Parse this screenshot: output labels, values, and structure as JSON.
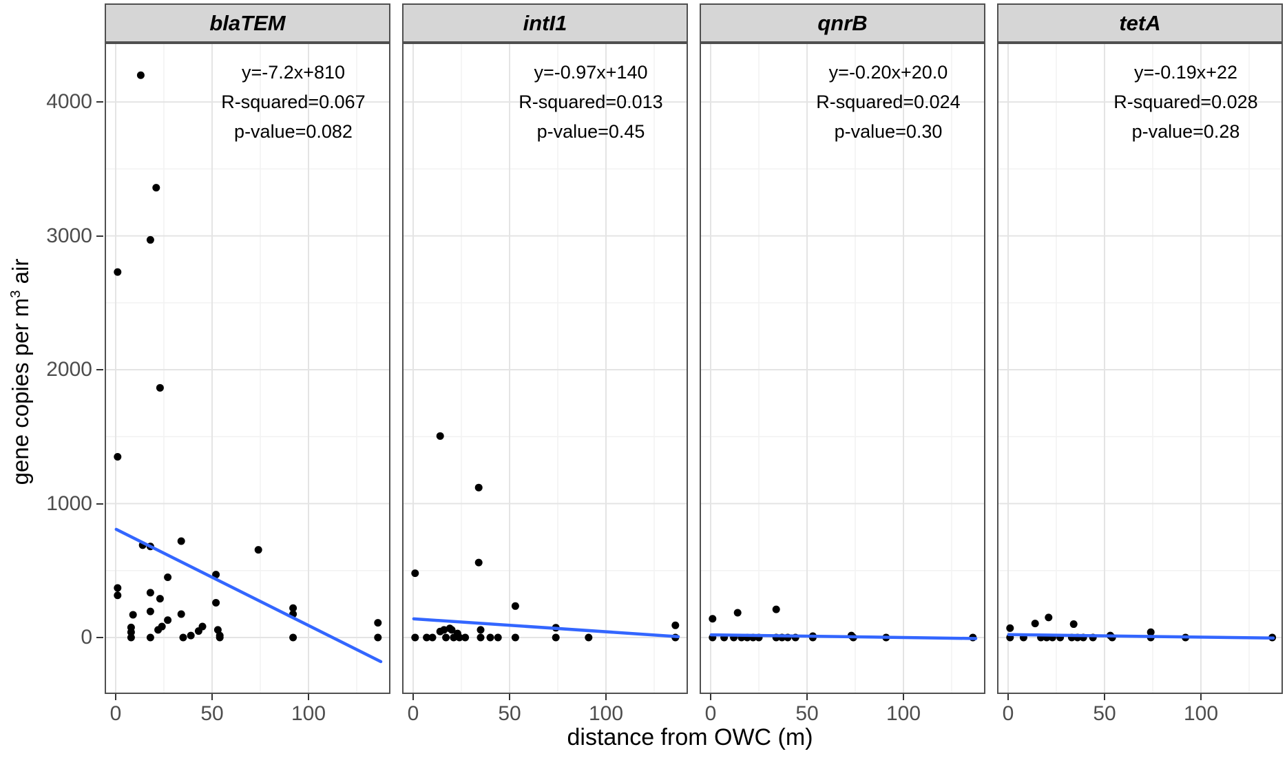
{
  "chart_data": {
    "type": "scatter",
    "title": "",
    "xlabel": "distance from OWC (m)",
    "ylabel": "gene copies per m³ air",
    "ylabel_parts": {
      "prefix": "gene copies per m",
      "superscript": "3",
      "suffix": " air"
    },
    "x_ticks": [
      0,
      50,
      100
    ],
    "y_ticks": [
      0,
      1000,
      2000,
      3000,
      4000
    ],
    "minor_x": [
      25,
      75,
      125
    ],
    "minor_y": [
      500,
      1500,
      2500,
      3500
    ],
    "xlim": [
      -5.7,
      142.5
    ],
    "ylim": [
      -420,
      4443
    ],
    "fit_x_range": [
      0.3,
      137.5
    ],
    "grid": true,
    "legend": "none",
    "style": {
      "point_color": "#000000",
      "line_color": "#3366FF",
      "grid_major": "#E4E4E4",
      "grid_minor": "#F2F2F2",
      "strip_fill": "#D6D6D6",
      "border_color": "#4F4F4F",
      "tick_color": "#333333",
      "tick_label_color": "#4D4D4D"
    },
    "facets": [
      {
        "label": "blaTEM",
        "equation": "y=-7.2x+810",
        "r_squared": "R-squared=0.067",
        "p_value": "p-value=0.082",
        "fit": {
          "slope": -7.2,
          "intercept": 810
        },
        "points": [
          [
            1,
            2730
          ],
          [
            13,
            4200
          ],
          [
            18,
            2970
          ],
          [
            21,
            3360
          ],
          [
            23,
            1865
          ],
          [
            1,
            1350
          ],
          [
            14,
            690
          ],
          [
            18,
            680
          ],
          [
            34,
            720
          ],
          [
            74,
            655
          ],
          [
            1,
            370
          ],
          [
            1,
            315
          ],
          [
            18,
            335
          ],
          [
            23,
            290
          ],
          [
            27,
            450
          ],
          [
            52,
            470
          ],
          [
            52,
            260
          ],
          [
            9,
            170
          ],
          [
            18,
            195
          ],
          [
            34,
            175
          ],
          [
            27,
            130
          ],
          [
            22,
            57
          ],
          [
            24,
            82
          ],
          [
            8,
            75
          ],
          [
            8,
            40
          ],
          [
            8,
            0
          ],
          [
            18,
            0
          ],
          [
            35,
            0
          ],
          [
            39,
            15
          ],
          [
            43,
            48
          ],
          [
            45,
            82
          ],
          [
            53,
            57
          ],
          [
            54,
            15
          ],
          [
            54,
            0
          ],
          [
            92,
            220
          ],
          [
            92,
            175
          ],
          [
            92,
            0
          ],
          [
            136,
            110
          ],
          [
            136,
            0
          ]
        ]
      },
      {
        "label": "intI1",
        "equation": "y=-0.97x+140",
        "r_squared": "R-squared=0.013",
        "p_value": "p-value=0.45",
        "fit": {
          "slope": -0.97,
          "intercept": 140
        },
        "points": [
          [
            14,
            1505
          ],
          [
            34,
            1120
          ],
          [
            34,
            560
          ],
          [
            1,
            480
          ],
          [
            53,
            235
          ],
          [
            1,
            0
          ],
          [
            7,
            0
          ],
          [
            10,
            0
          ],
          [
            14,
            45
          ],
          [
            16,
            57
          ],
          [
            17,
            0
          ],
          [
            19,
            68
          ],
          [
            20,
            57
          ],
          [
            21,
            0
          ],
          [
            23,
            30
          ],
          [
            24,
            0
          ],
          [
            27,
            0
          ],
          [
            35,
            57
          ],
          [
            35,
            0
          ],
          [
            40,
            0
          ],
          [
            44,
            0
          ],
          [
            53,
            0
          ],
          [
            74,
            73
          ],
          [
            74,
            0
          ],
          [
            91,
            0
          ],
          [
            136,
            91
          ],
          [
            136,
            0
          ]
        ]
      },
      {
        "label": "qnrB",
        "equation": "y=-0.20x+20.0",
        "r_squared": "R-squared=0.024",
        "p_value": "p-value=0.30",
        "fit": {
          "slope": -0.2,
          "intercept": 20.0
        },
        "points": [
          [
            1,
            140
          ],
          [
            14,
            185
          ],
          [
            34,
            210
          ],
          [
            1,
            0
          ],
          [
            7,
            0
          ],
          [
            12,
            0
          ],
          [
            16,
            0
          ],
          [
            19,
            0
          ],
          [
            22,
            0
          ],
          [
            25,
            0
          ],
          [
            34,
            0
          ],
          [
            37,
            0
          ],
          [
            40,
            0
          ],
          [
            44,
            0
          ],
          [
            53,
            10
          ],
          [
            53,
            0
          ],
          [
            73,
            15
          ],
          [
            74,
            0
          ],
          [
            91,
            0
          ],
          [
            136,
            0
          ]
        ]
      },
      {
        "label": "tetA",
        "equation": "y=-0.19x+22",
        "r_squared": "R-squared=0.028",
        "p_value": "p-value=0.28",
        "fit": {
          "slope": -0.19,
          "intercept": 22
        },
        "points": [
          [
            1,
            70
          ],
          [
            14,
            105
          ],
          [
            21,
            150
          ],
          [
            34,
            100
          ],
          [
            74,
            40
          ],
          [
            1,
            0
          ],
          [
            8,
            0
          ],
          [
            17,
            0
          ],
          [
            20,
            0
          ],
          [
            23,
            0
          ],
          [
            27,
            0
          ],
          [
            33,
            0
          ],
          [
            36,
            0
          ],
          [
            39,
            0
          ],
          [
            44,
            0
          ],
          [
            53,
            15
          ],
          [
            54,
            0
          ],
          [
            74,
            0
          ],
          [
            92,
            0
          ],
          [
            137,
            0
          ]
        ]
      }
    ]
  }
}
